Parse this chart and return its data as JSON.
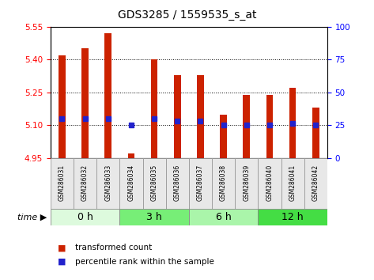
{
  "title": "GDS3285 / 1559535_s_at",
  "samples": [
    "GSM286031",
    "GSM286032",
    "GSM286033",
    "GSM286034",
    "GSM286035",
    "GSM286036",
    "GSM286037",
    "GSM286038",
    "GSM286039",
    "GSM286040",
    "GSM286041",
    "GSM286042"
  ],
  "bar_bottom": 4.95,
  "bar_tops": [
    5.42,
    5.45,
    5.52,
    4.97,
    5.4,
    5.33,
    5.33,
    5.15,
    5.24,
    5.24,
    5.27,
    5.18
  ],
  "percentile_vals": [
    5.13,
    5.13,
    5.13,
    5.1,
    5.13,
    5.12,
    5.12,
    5.101,
    5.101,
    5.101,
    5.11,
    5.101
  ],
  "ylim": [
    4.95,
    5.55
  ],
  "yticks_left": [
    4.95,
    5.1,
    5.25,
    5.4,
    5.55
  ],
  "yticks_right": [
    0,
    25,
    50,
    75,
    100
  ],
  "bar_color": "#cc2200",
  "percentile_color": "#2222cc",
  "groups": [
    {
      "label": "0 h",
      "start": 0,
      "end": 3,
      "color": "#ddfadd"
    },
    {
      "label": "3 h",
      "start": 3,
      "end": 6,
      "color": "#77ee77"
    },
    {
      "label": "6 h",
      "start": 6,
      "end": 9,
      "color": "#aaf5aa"
    },
    {
      "label": "12 h",
      "start": 9,
      "end": 12,
      "color": "#44dd44"
    }
  ],
  "time_label": "time",
  "legend_bar_label": "transformed count",
  "legend_pct_label": "percentile rank within the sample"
}
